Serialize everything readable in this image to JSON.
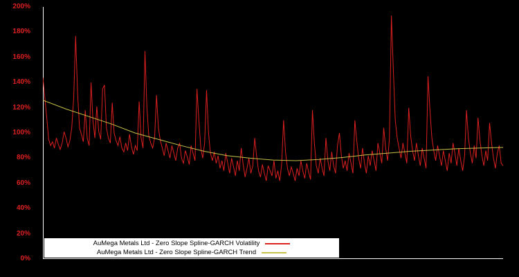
{
  "colors": {
    "background": "#000000",
    "axis": "#ffffff",
    "tick_label": "#dd2020",
    "legend_bg": "#ffffff",
    "legend_text": "#000000"
  },
  "chart_data": {
    "type": "line",
    "title": "",
    "xlabel": "",
    "ylabel": "",
    "ylim": [
      0,
      200
    ],
    "grid": false,
    "legend_position": "bottom-center-inside",
    "x_axis_labels_visible": false,
    "y_ticks": [
      {
        "v": 0,
        "label": "0%"
      },
      {
        "v": 20,
        "label": "20%"
      },
      {
        "v": 40,
        "label": "40%"
      },
      {
        "v": 60,
        "label": "60%"
      },
      {
        "v": 80,
        "label": "80%"
      },
      {
        "v": 100,
        "label": "100%"
      },
      {
        "v": 120,
        "label": "120%"
      },
      {
        "v": 140,
        "label": "140%"
      },
      {
        "v": 160,
        "label": "160%"
      },
      {
        "v": 180,
        "label": "180%"
      },
      {
        "v": 200,
        "label": "200%"
      }
    ],
    "series": [
      {
        "name": "AuMega Metals Ltd - Zero Slope Spline-GARCH Volatility",
        "color": "#dd2020",
        "unit": "%",
        "values": [
          144,
          128,
          112,
          95,
          90,
          93,
          88,
          96,
          91,
          87,
          92,
          101,
          96,
          89,
          94,
          104,
          128,
          177,
          132,
          104,
          99,
          93,
          118,
          96,
          90,
          140,
          110,
          96,
          121,
          101,
          95,
          135,
          138,
          104,
          96,
          92,
          124,
          100,
          94,
          90,
          97,
          88,
          85,
          92,
          86,
          99,
          89,
          83,
          90,
          86,
          125,
          96,
          88,
          165,
          120,
          98,
          92,
          88,
          96,
          130,
          104,
          94,
          88,
          82,
          92,
          86,
          80,
          90,
          84,
          78,
          88,
          92,
          80,
          76,
          86,
          81,
          75,
          90,
          84,
          78,
          135,
          110,
          88,
          80,
          92,
          134,
          100,
          84,
          78,
          85,
          76,
          82,
          72,
          78,
          70,
          84,
          76,
          68,
          80,
          73,
          66,
          78,
          70,
          88,
          75,
          65,
          72,
          80,
          68,
          74,
          96,
          82,
          70,
          65,
          75,
          68,
          62,
          74,
          70,
          66,
          78,
          64,
          70,
          62,
          75,
          110,
          85,
          72,
          66,
          73,
          68,
          62,
          72,
          66,
          78,
          70,
          64,
          76,
          69,
          63,
          118,
          92,
          74,
          68,
          80,
          72,
          66,
          96,
          78,
          70,
          85,
          74,
          68,
          90,
          100,
          82,
          72,
          78,
          70,
          84,
          76,
          68,
          110,
          94,
          80,
          72,
          88,
          76,
          68,
          82,
          74,
          86,
          78,
          70,
          92,
          84,
          76,
          104,
          88,
          78,
          96,
          193,
          150,
          110,
          96,
          88,
          80,
          92,
          84,
          76,
          120,
          98,
          86,
          78,
          92,
          82,
          74,
          88,
          80,
          72,
          145,
          118,
          96,
          86,
          78,
          90,
          82,
          74,
          86,
          78,
          70,
          84,
          76,
          92,
          84,
          74,
          88,
          78,
          70,
          82,
          118,
          96,
          84,
          76,
          90,
          80,
          112,
          94,
          82,
          74,
          86,
          78,
          108,
          92,
          80,
          72,
          84,
          90,
          76,
          74
        ]
      },
      {
        "name": "AuMega Metals Ltd - Zero Slope Spline-GARCH Trend",
        "color": "#c9c24a",
        "unit": "%",
        "control_points": [
          {
            "t": 0.0,
            "v": 126
          },
          {
            "t": 0.05,
            "v": 119
          },
          {
            "t": 0.1,
            "v": 113
          },
          {
            "t": 0.15,
            "v": 107
          },
          {
            "t": 0.2,
            "v": 100
          },
          {
            "t": 0.25,
            "v": 95
          },
          {
            "t": 0.3,
            "v": 90
          },
          {
            "t": 0.35,
            "v": 85.5
          },
          {
            "t": 0.4,
            "v": 82
          },
          {
            "t": 0.45,
            "v": 80
          },
          {
            "t": 0.5,
            "v": 78.5
          },
          {
            "t": 0.55,
            "v": 78
          },
          {
            "t": 0.6,
            "v": 79
          },
          {
            "t": 0.65,
            "v": 80.5
          },
          {
            "t": 0.7,
            "v": 82.5
          },
          {
            "t": 0.75,
            "v": 84
          },
          {
            "t": 0.8,
            "v": 85.5
          },
          {
            "t": 0.85,
            "v": 86.5
          },
          {
            "t": 0.9,
            "v": 87.5
          },
          {
            "t": 0.95,
            "v": 88
          },
          {
            "t": 1.0,
            "v": 88.5
          }
        ]
      }
    ],
    "legend": [
      {
        "label": "AuMega Metals Ltd - Zero Slope Spline-GARCH Volatility",
        "color": "#dd2020"
      },
      {
        "label": "AuMega Metals Ltd - Zero Slope Spline-GARCH Trend",
        "color": "#c9c24a"
      }
    ]
  }
}
